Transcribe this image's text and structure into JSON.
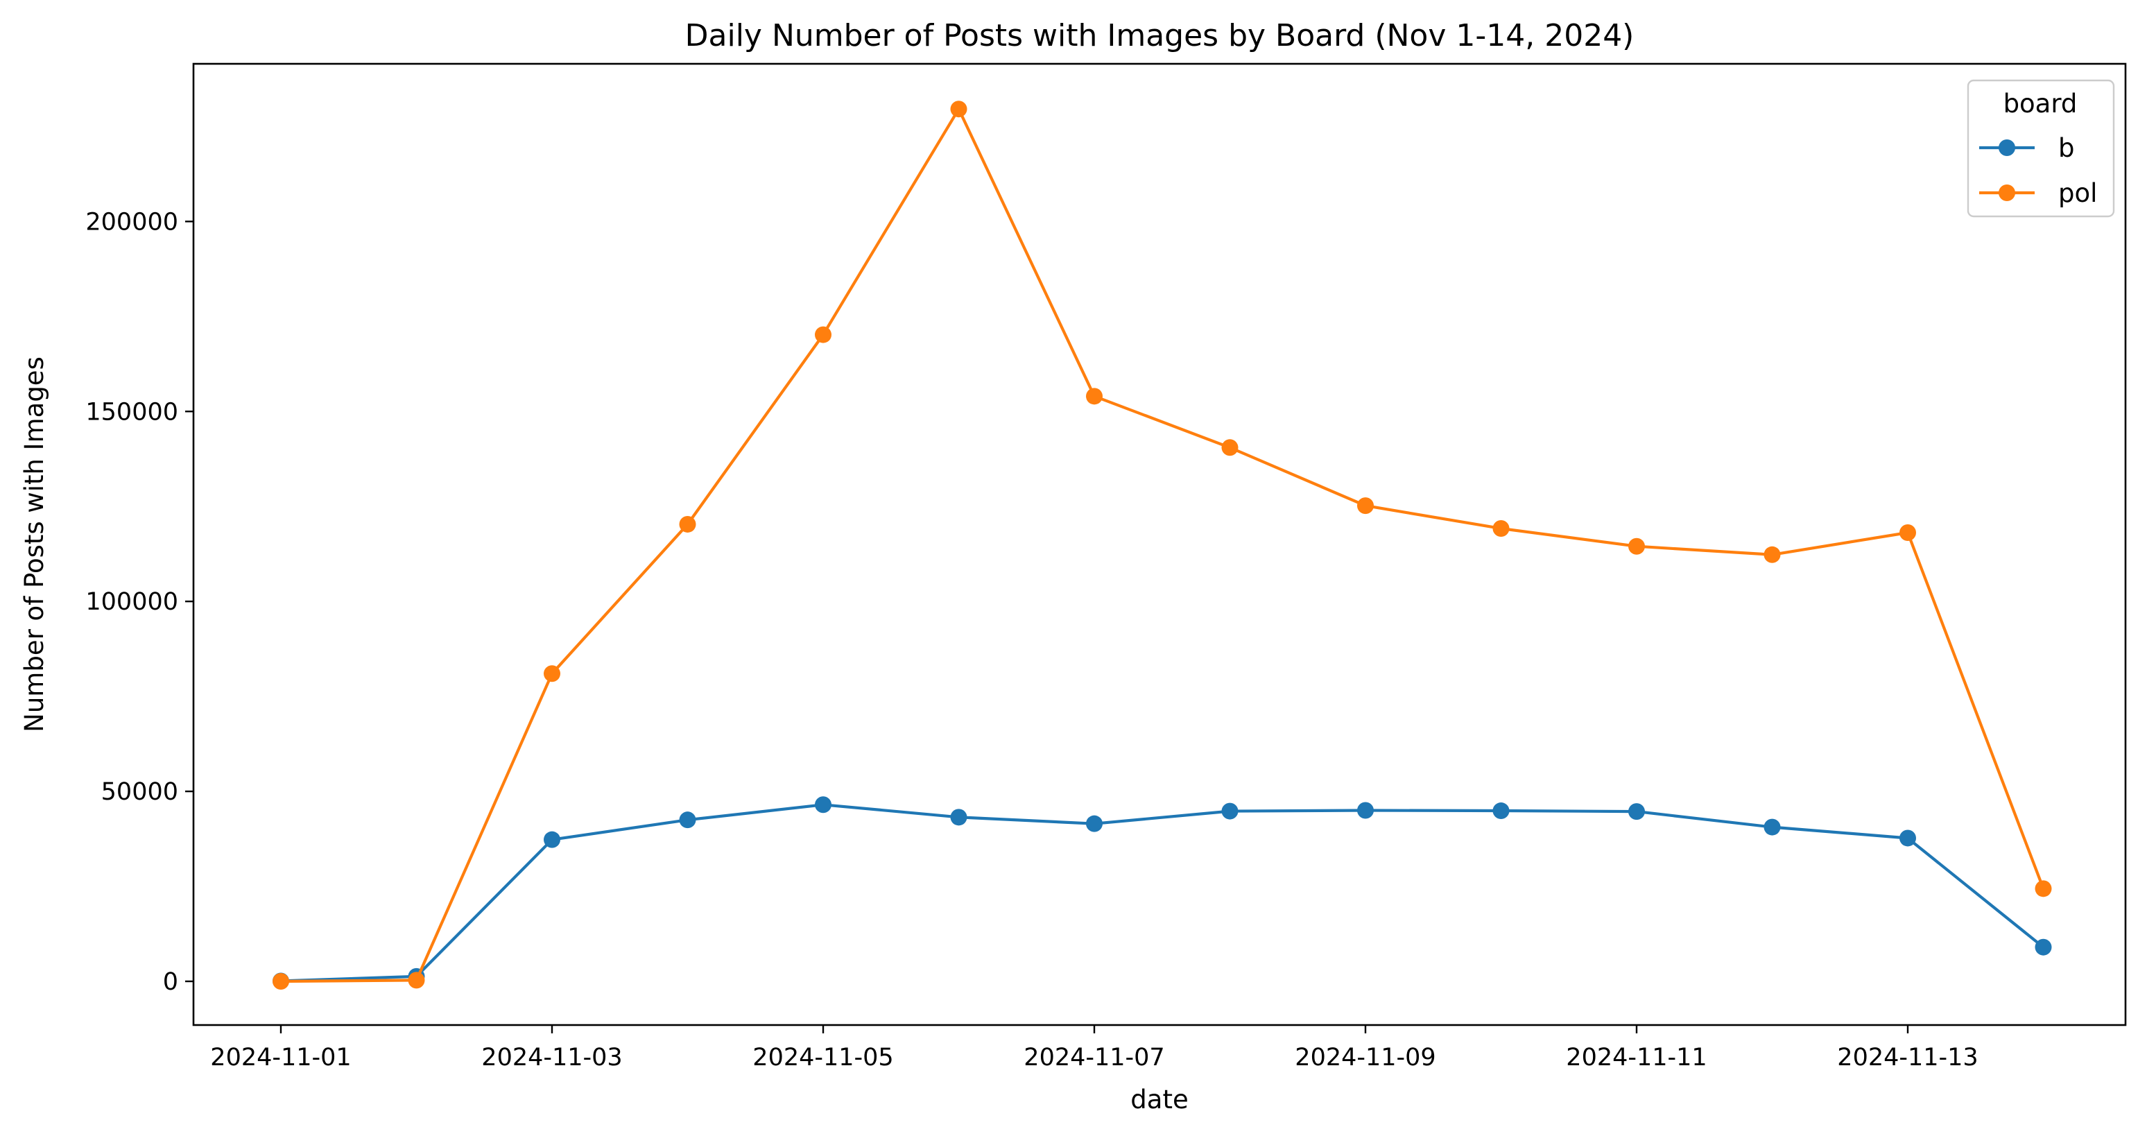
{
  "chart_data": {
    "type": "line",
    "title": "Daily Number of Posts with Images by Board (Nov 1-14, 2024)",
    "xlabel": "date",
    "ylabel": "Number of Posts with Images",
    "x": [
      "2024-11-01",
      "2024-11-02",
      "2024-11-03",
      "2024-11-04",
      "2024-11-05",
      "2024-11-06",
      "2024-11-07",
      "2024-11-08",
      "2024-11-09",
      "2024-11-10",
      "2024-11-11",
      "2024-11-12",
      "2024-11-13",
      "2024-11-14"
    ],
    "x_tick_labels": [
      "2024-11-01",
      "2024-11-03",
      "2024-11-05",
      "2024-11-07",
      "2024-11-09",
      "2024-11-11",
      "2024-11-13"
    ],
    "y_ticks": [
      0,
      50000,
      100000,
      150000,
      200000
    ],
    "y_tick_labels": [
      "0",
      "50000",
      "100000",
      "150000",
      "200000"
    ],
    "ylim": [
      -11500,
      241500
    ],
    "grid": false,
    "legend": {
      "title": "board",
      "placement": "top-right"
    },
    "series": [
      {
        "name": "b",
        "color": "#1f77b4",
        "marker": "circle",
        "values": [
          100,
          1300,
          37300,
          42500,
          46500,
          43200,
          41500,
          44800,
          45000,
          44900,
          44700,
          40600,
          37700,
          9000
        ]
      },
      {
        "name": "pol",
        "color": "#ff7f0e",
        "marker": "circle",
        "values": [
          0,
          300,
          81000,
          120300,
          170200,
          229600,
          154000,
          140500,
          125200,
          119200,
          114500,
          112300,
          118100,
          24400
        ]
      }
    ]
  }
}
